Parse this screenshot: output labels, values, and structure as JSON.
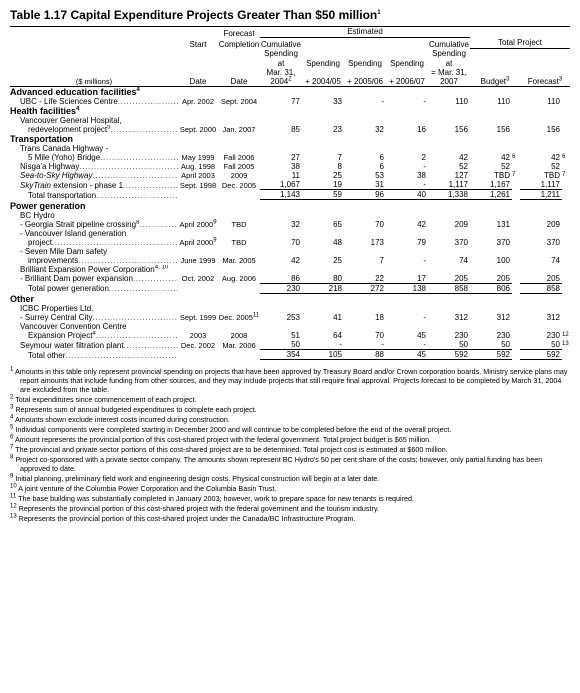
{
  "title": "Table 1.17   Capital Expenditure Projects Greater Than $50 million",
  "title_sup": "1",
  "unit_label": "($ millions)",
  "headers": {
    "start_date": "Start\nDate",
    "forecast_completion": "Forecast\nCompletion\nDate",
    "estimated": "Estimated",
    "cum_spend_mar04": "Cumulative\nSpending at\nMar. 31, 2004",
    "cum_spend_mar04_sup": "2",
    "sp0405": "Spending\n2004/05",
    "sp0506": "Spending\n2005/06",
    "sp0607": "Spending\n2006/07",
    "cum_mar07": "Cumulative\nSpending at\n= Mar. 31, 2007",
    "total_project": "Total Project",
    "budget": "Budget",
    "budget_sup": "3",
    "forecast": "Forecast",
    "forecast_sup": "3",
    "plus": "+"
  },
  "sections": [
    {
      "name": "Advanced education facilities",
      "name_sup": "4",
      "rows": [
        {
          "label": "UBC - Life Sciences Centre",
          "indent": 1,
          "start": "Apr. 2002",
          "fcd": "Sept. 2004",
          "v": [
            "77",
            "33",
            "-",
            "-",
            "110",
            "110",
            "110"
          ]
        }
      ]
    },
    {
      "name": "Health facilities",
      "name_sup": "4",
      "rows": [
        {
          "label": "Vancouver General Hospital,",
          "indent": 1,
          "start": "",
          "fcd": "",
          "v": [
            "",
            "",
            "",
            "",
            "",
            "",
            ""
          ]
        },
        {
          "label": "redevelopment project",
          "label_sup": "5",
          "indent": 2,
          "start": "Sept. 2000",
          "fcd": "Jan. 2007",
          "v": [
            "85",
            "23",
            "32",
            "16",
            "156",
            "156",
            "156"
          ]
        }
      ]
    },
    {
      "name": "Transportation",
      "rows": [
        {
          "label": "Trans Canada Highway -",
          "indent": 1,
          "start": "",
          "fcd": "",
          "v": [
            "",
            "",
            "",
            "",
            "",
            "",
            ""
          ]
        },
        {
          "label": "5 Mile (Yoho) Bridge",
          "indent": 2,
          "start": "May 1999",
          "fcd": "Fall 2006",
          "v": [
            "27",
            "7",
            "6",
            "2",
            "42",
            "42",
            "42"
          ],
          "sup_budget": "6",
          "sup_forecast": "6"
        },
        {
          "label": "Nisga'a Highway",
          "indent": 1,
          "start": "Aug. 1998",
          "fcd": "Fall 2005",
          "v": [
            "38",
            "8",
            "6",
            "-",
            "52",
            "52",
            "52"
          ]
        },
        {
          "label": "Sea-to-Sky  Highway",
          "italic": true,
          "indent": 1,
          "start": "April 2003",
          "fcd": "2009",
          "v": [
            "11",
            "25",
            "53",
            "38",
            "127",
            "TBD",
            "TBD"
          ],
          "sup_budget": "7",
          "sup_forecast": "7"
        },
        {
          "label": "SkyTrain  extension - phase 1",
          "italic_prefix": "SkyTrain",
          "indent": 1,
          "start": "Sept. 1998",
          "fcd": "Dec. 2005",
          "v": [
            "1,067",
            "19",
            "31",
            "-",
            "1,117",
            "1,167",
            "1,117"
          ]
        }
      ],
      "subtotal": {
        "label": "Total transportation",
        "v": [
          "1,143",
          "59",
          "96",
          "40",
          "1,338",
          "1,261",
          "1,211"
        ]
      }
    },
    {
      "name": "Power generation",
      "rows": [
        {
          "label": "BC Hydro",
          "indent": 1,
          "start": "",
          "fcd": "",
          "v": [
            "",
            "",
            "",
            "",
            "",
            "",
            ""
          ]
        },
        {
          "label": "- Georgia Strait pipeline crossing",
          "label_sup": "8",
          "indent": 1,
          "start": "April 2000",
          "start_sup": "9",
          "fcd": "TBD",
          "v": [
            "32",
            "65",
            "70",
            "42",
            "209",
            "131",
            "209"
          ]
        },
        {
          "label": "- Vancouver Island generation",
          "indent": 1,
          "start": "",
          "fcd": "",
          "v": [
            "",
            "",
            "",
            "",
            "",
            "",
            ""
          ]
        },
        {
          "label": "project",
          "indent": 2,
          "start": "April 2000",
          "start_sup": "9",
          "fcd": "TBD",
          "v": [
            "70",
            "48",
            "173",
            "79",
            "370",
            "370",
            "370"
          ]
        },
        {
          "label": "- Seven Mile Dam safety",
          "indent": 1,
          "start": "",
          "fcd": "",
          "v": [
            "",
            "",
            "",
            "",
            "",
            "",
            ""
          ]
        },
        {
          "label": "improvements",
          "indent": 2,
          "start": "June 1999",
          "fcd": "Mar. 2005",
          "v": [
            "42",
            "25",
            "7",
            "-",
            "74",
            "100",
            "74"
          ]
        },
        {
          "label": "Brilliant Expansion Power Corporation",
          "label_sup": "4, 10",
          "indent": 1,
          "start": "",
          "fcd": "",
          "v": [
            "",
            "",
            "",
            "",
            "",
            "",
            ""
          ]
        },
        {
          "label": "- Brilliant Dam power expansion",
          "indent": 1,
          "start": "Oct. 2002",
          "fcd": "Aug. 2006",
          "v": [
            "86",
            "80",
            "22",
            "17",
            "205",
            "205",
            "205"
          ]
        }
      ],
      "subtotal": {
        "label": "Total power generation",
        "v": [
          "230",
          "218",
          "272",
          "138",
          "858",
          "806",
          "858"
        ]
      }
    },
    {
      "name": "Other",
      "rows": [
        {
          "label": "ICBC Properties Ltd.",
          "indent": 1,
          "start": "",
          "fcd": "",
          "v": [
            "",
            "",
            "",
            "",
            "",
            "",
            ""
          ]
        },
        {
          "label": "- Surrey Central City",
          "indent": 1,
          "start": "Sept. 1999",
          "fcd": "Dec. 2005",
          "fcd_sup": "11",
          "v": [
            "253",
            "41",
            "18",
            "-",
            "312",
            "312",
            "312"
          ]
        },
        {
          "label": "Vancouver Convention Centre",
          "indent": 1,
          "start": "",
          "fcd": "",
          "v": [
            "",
            "",
            "",
            "",
            "",
            "",
            ""
          ]
        },
        {
          "label": "Expansion Project",
          "label_sup": "4",
          "indent": 2,
          "start": "2003",
          "fcd": "2008",
          "v": [
            "51",
            "64",
            "70",
            "45",
            "230",
            "230",
            "230"
          ],
          "sup_forecast": "12"
        },
        {
          "label": "Seymour water filtration plant",
          "indent": 1,
          "start": "Dec. 2002",
          "fcd": "Mar. 2006",
          "v": [
            "50",
            "-",
            "-",
            "-",
            "50",
            "50",
            "50"
          ],
          "sup_forecast": "13"
        }
      ],
      "subtotal": {
        "label": "Total other",
        "v": [
          "354",
          "105",
          "88",
          "45",
          "592",
          "592",
          "592"
        ]
      }
    }
  ],
  "footnotes": [
    "Amounts in this table only represent provincial spending on projects that have been approved by Treasury Board and/or Crown corporation boards. Ministry service plans may report amounts that include funding from other sources, and they may include projects that still require final approval. Projects forecast to be completed by March 31, 2004 are excluded from the table.",
    "Total expenditures since commencement of each project.",
    "Represents sum of annual budgeted expenditures to complete each project.",
    "Amounts shown exclude interest costs incurred during construction.",
    "Individual components were completed starting in December 2000 and will continue to be completed before the end of the overall project.",
    "Amount represents the provincial portion of this cost-shared project with the federal government. Total project budget is $65 million.",
    "The provincial and private sector portions of this cost-shared project are to be determined. Total project cost is estimated at $600 million.",
    "Project co-sponsored with a private sector company.  The amounts shown represent BC Hydro's 50 per cent share of the costs; however, only partial funding has been approved to date.",
    "Initial planning, preliminary field work and engineering design costs.  Physical construction will begin at a later date.",
    "A joint venture of the Columbia Power Corporation and the Columbia Basin Trust.",
    "The base building was substantially completed in January 2003; however, work to prepare space for new tenants is required.",
    "Represents the provincial portion of this cost-shared project with the federal government and the tourism industry.",
    "Represents the provincial portion of this cost-shared project under the Canada/BC Infrastructure Program."
  ]
}
